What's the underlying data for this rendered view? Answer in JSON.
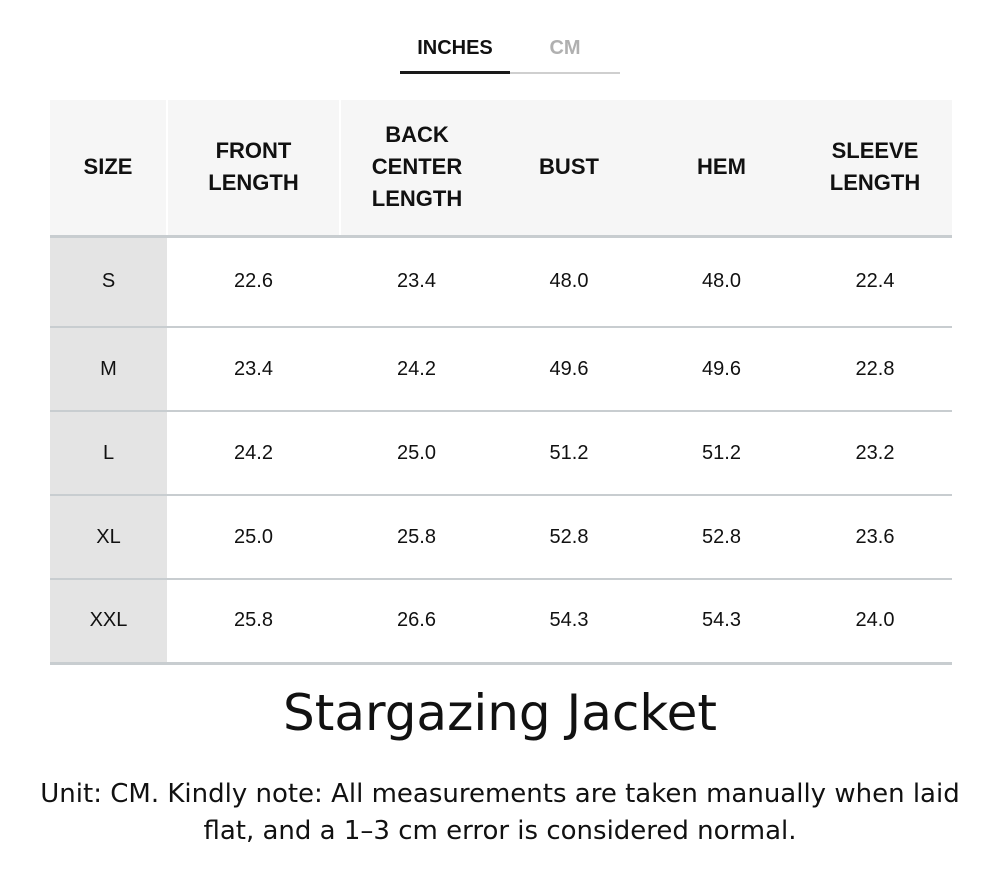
{
  "tabs": {
    "inches": "INCHES",
    "cm": "CM"
  },
  "table": {
    "headers": [
      "SIZE",
      "FRONT\nLENGTH",
      "BACK\nCENTER\nLENGTH",
      "BUST",
      "HEM",
      "SLEEVE\nLENGTH"
    ],
    "rows": [
      {
        "size": "S",
        "values": [
          "22.6",
          "23.4",
          "48.0",
          "48.0",
          "22.4"
        ]
      },
      {
        "size": "M",
        "values": [
          "23.4",
          "24.2",
          "49.6",
          "49.6",
          "22.8"
        ]
      },
      {
        "size": "L",
        "values": [
          "24.2",
          "25.0",
          "51.2",
          "51.2",
          "23.2"
        ]
      },
      {
        "size": "XL",
        "values": [
          "25.0",
          "25.8",
          "52.8",
          "52.8",
          "23.6"
        ]
      },
      {
        "size": "XXL",
        "values": [
          "25.8",
          "26.6",
          "54.3",
          "54.3",
          "24.0"
        ]
      }
    ]
  },
  "product_title": "Stargazing Jacket",
  "note": "Unit: CM. Kindly note: All measurements are taken manually when laid flat, and a 1–3 cm error is considered normal.",
  "colors": {
    "header_bg": "#f6f6f6",
    "size_column_bg": "#e4e4e4",
    "divider": "#c8cdd0",
    "active_tab_underline": "#1a1a1a",
    "inactive_tab_text": "#b0b0b0"
  }
}
